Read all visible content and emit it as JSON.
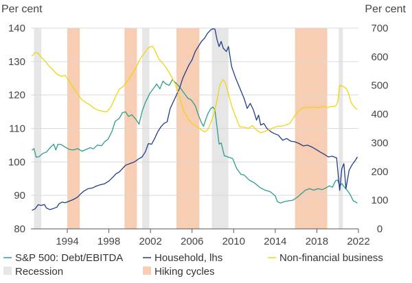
{
  "chart_data": {
    "type": "line",
    "left_unit": "Per cent",
    "right_unit": "Per cent",
    "left_axis": {
      "ticks": [
        80,
        90,
        100,
        110,
        120,
        130,
        140
      ],
      "ylim": [
        80,
        140
      ]
    },
    "right_axis": {
      "ticks": [
        0,
        100,
        200,
        300,
        400,
        500,
        600,
        700
      ],
      "ylim": [
        0,
        700
      ]
    },
    "x_axis": {
      "ticks": [
        1994,
        1998,
        2002,
        2006,
        2010,
        2014,
        2018,
        2022
      ],
      "xlim": [
        1990.5,
        2022
      ],
      "labels": [
        "1994",
        "1998",
        "2002",
        "2006",
        "2010",
        "2014",
        "2018",
        "2022"
      ]
    },
    "grid": true,
    "legend_position": "bottom",
    "shaded_periods": {
      "recession": {
        "name": "Recession",
        "color": "#e6e6e6",
        "periods": [
          [
            1990.8,
            1991.5
          ],
          [
            2001.2,
            2001.9
          ],
          [
            2007.9,
            2009.5
          ],
          [
            2020.1,
            2020.5
          ]
        ]
      },
      "hiking": {
        "name": "Hiking cycles",
        "color": "#f7cdb4",
        "periods": [
          [
            1994.0,
            1995.2
          ],
          [
            1999.5,
            2000.7
          ],
          [
            2004.5,
            2006.7
          ],
          [
            2015.9,
            2019.0
          ]
        ]
      }
    },
    "series": [
      {
        "name": "S&P 500: Debt/EBITDA",
        "axis": "right",
        "color": "#2a9d8f",
        "points": [
          [
            1990.6,
            274
          ],
          [
            1990.8,
            280
          ],
          [
            1991.0,
            250
          ],
          [
            1991.3,
            252
          ],
          [
            1991.6,
            262
          ],
          [
            1992.0,
            268
          ],
          [
            1992.4,
            285
          ],
          [
            1992.7,
            295
          ],
          [
            1992.9,
            275
          ],
          [
            1993.1,
            295
          ],
          [
            1993.4,
            294
          ],
          [
            1993.8,
            285
          ],
          [
            1994.2,
            277
          ],
          [
            1994.6,
            275
          ],
          [
            1995.0,
            280
          ],
          [
            1995.4,
            271
          ],
          [
            1995.7,
            275
          ],
          [
            1996.2,
            283
          ],
          [
            1996.5,
            279
          ],
          [
            1996.9,
            292
          ],
          [
            1997.3,
            290
          ],
          [
            1997.6,
            304
          ],
          [
            1997.9,
            312
          ],
          [
            1998.3,
            340
          ],
          [
            1998.6,
            375
          ],
          [
            1999.0,
            385
          ],
          [
            1999.3,
            405
          ],
          [
            1999.6,
            408
          ],
          [
            1999.9,
            392
          ],
          [
            2000.2,
            398
          ],
          [
            2000.6,
            382
          ],
          [
            2000.9,
            365
          ],
          [
            2001.2,
            410
          ],
          [
            2001.5,
            440
          ],
          [
            2001.9,
            470
          ],
          [
            2002.3,
            490
          ],
          [
            2002.6,
            505
          ],
          [
            2002.9,
            488
          ],
          [
            2003.2,
            515
          ],
          [
            2003.5,
            505
          ],
          [
            2003.8,
            500
          ],
          [
            2004.1,
            520
          ],
          [
            2004.4,
            510
          ],
          [
            2004.8,
            495
          ],
          [
            2005.2,
            475
          ],
          [
            2005.6,
            455
          ],
          [
            2005.9,
            450
          ],
          [
            2006.3,
            430
          ],
          [
            2006.6,
            398
          ],
          [
            2006.9,
            370
          ],
          [
            2007.1,
            358
          ],
          [
            2007.5,
            400
          ],
          [
            2007.8,
            420
          ],
          [
            2008.0,
            425
          ],
          [
            2008.2,
            415
          ],
          [
            2008.6,
            295
          ],
          [
            2008.8,
            300
          ],
          [
            2009.1,
            255
          ],
          [
            2009.5,
            250
          ],
          [
            2009.9,
            245
          ],
          [
            2010.3,
            210
          ],
          [
            2010.7,
            190
          ],
          [
            2011.0,
            188
          ],
          [
            2011.5,
            170
          ],
          [
            2012.0,
            160
          ],
          [
            2012.5,
            145
          ],
          [
            2013.0,
            135
          ],
          [
            2013.5,
            130
          ],
          [
            2014.0,
            115
          ],
          [
            2014.2,
            95
          ],
          [
            2014.5,
            90
          ],
          [
            2014.9,
            95
          ],
          [
            2015.3,
            98
          ],
          [
            2015.7,
            100
          ],
          [
            2016.1,
            110
          ],
          [
            2016.5,
            122
          ],
          [
            2016.9,
            135
          ],
          [
            2017.3,
            140
          ],
          [
            2017.7,
            135
          ],
          [
            2018.1,
            140
          ],
          [
            2018.5,
            137
          ],
          [
            2018.9,
            143
          ],
          [
            2019.2,
            150
          ],
          [
            2019.5,
            145
          ],
          [
            2019.8,
            168
          ],
          [
            2020.0,
            170
          ],
          [
            2020.2,
            150
          ],
          [
            2020.4,
            158
          ],
          [
            2020.6,
            148
          ],
          [
            2020.9,
            135
          ],
          [
            2021.2,
            120
          ],
          [
            2021.5,
            98
          ],
          [
            2021.9,
            90
          ]
        ]
      },
      {
        "name": "Household, lhs",
        "axis": "left",
        "color": "#1f3c88",
        "points": [
          [
            1990.6,
            85.5
          ],
          [
            1990.9,
            86
          ],
          [
            1991.2,
            87.2
          ],
          [
            1991.5,
            87
          ],
          [
            1991.8,
            87.3
          ],
          [
            1992.0,
            86.2
          ],
          [
            1992.3,
            85.8
          ],
          [
            1992.6,
            86
          ],
          [
            1993.0,
            86.5
          ],
          [
            1993.2,
            87.5
          ],
          [
            1993.5,
            88
          ],
          [
            1993.8,
            87.8
          ],
          [
            1994.2,
            88.3
          ],
          [
            1994.6,
            88.8
          ],
          [
            1995.0,
            89.5
          ],
          [
            1995.3,
            90.5
          ],
          [
            1995.6,
            91.3
          ],
          [
            1996.0,
            92
          ],
          [
            1996.4,
            92.2
          ],
          [
            1996.8,
            92.8
          ],
          [
            1997.2,
            93.2
          ],
          [
            1997.6,
            93.5
          ],
          [
            1998.0,
            94.3
          ],
          [
            1998.4,
            95.5
          ],
          [
            1998.7,
            96.5
          ],
          [
            1999.0,
            97
          ],
          [
            1999.3,
            98
          ],
          [
            1999.6,
            99
          ],
          [
            2000.0,
            99.5
          ],
          [
            2000.3,
            99.8
          ],
          [
            2000.6,
            100.3
          ],
          [
            2000.9,
            101
          ],
          [
            2001.2,
            101.5
          ],
          [
            2001.5,
            103
          ],
          [
            2001.8,
            105.5
          ],
          [
            2002.1,
            105.3
          ],
          [
            2002.4,
            107
          ],
          [
            2002.7,
            109
          ],
          [
            2003.0,
            110.5
          ],
          [
            2003.3,
            111.5
          ],
          [
            2003.6,
            112
          ],
          [
            2003.9,
            116
          ],
          [
            2004.2,
            118
          ],
          [
            2004.5,
            120
          ],
          [
            2004.8,
            122
          ],
          [
            2005.1,
            125
          ],
          [
            2005.4,
            127
          ],
          [
            2005.7,
            129
          ],
          [
            2006.0,
            130.5
          ],
          [
            2006.3,
            133
          ],
          [
            2006.6,
            134.5
          ],
          [
            2006.9,
            136
          ],
          [
            2007.2,
            137
          ],
          [
            2007.5,
            138.5
          ],
          [
            2007.8,
            139.5
          ],
          [
            2008.0,
            139.8
          ],
          [
            2008.2,
            139.7
          ],
          [
            2008.4,
            136.5
          ],
          [
            2008.6,
            134.5
          ],
          [
            2008.8,
            136
          ],
          [
            2009.0,
            134
          ],
          [
            2009.3,
            133
          ],
          [
            2009.5,
            134.5
          ],
          [
            2009.8,
            128.5
          ],
          [
            2010.2,
            125
          ],
          [
            2010.6,
            122
          ],
          [
            2011.0,
            119
          ],
          [
            2011.3,
            116
          ],
          [
            2011.6,
            117.5
          ],
          [
            2011.9,
            115.5
          ],
          [
            2012.2,
            112.5
          ],
          [
            2012.4,
            114
          ],
          [
            2012.6,
            111
          ],
          [
            2012.9,
            111.5
          ],
          [
            2013.2,
            110
          ],
          [
            2013.6,
            109
          ],
          [
            2013.9,
            108.5
          ],
          [
            2014.3,
            108
          ],
          [
            2014.7,
            106.5
          ],
          [
            2015.1,
            107
          ],
          [
            2015.5,
            106.2
          ],
          [
            2015.9,
            106
          ],
          [
            2016.3,
            105.5
          ],
          [
            2016.7,
            104.8
          ],
          [
            2017.1,
            105
          ],
          [
            2017.5,
            104.5
          ],
          [
            2017.9,
            103.8
          ],
          [
            2018.3,
            103
          ],
          [
            2018.7,
            102.3
          ],
          [
            2019.1,
            101.5
          ],
          [
            2019.5,
            101.7
          ],
          [
            2019.9,
            101.2
          ],
          [
            2020.2,
            91.5
          ],
          [
            2020.4,
            98
          ],
          [
            2020.6,
            99.5
          ],
          [
            2020.8,
            92
          ],
          [
            2021.1,
            97.5
          ],
          [
            2021.4,
            99.2
          ],
          [
            2021.7,
            100.5
          ],
          [
            2021.9,
            101.5
          ]
        ]
      },
      {
        "name": "Non-financial business",
        "axis": "right",
        "color": "#f2d40c",
        "points": [
          [
            1990.6,
            602
          ],
          [
            1990.9,
            615
          ],
          [
            1991.2,
            612
          ],
          [
            1991.5,
            598
          ],
          [
            1991.8,
            588
          ],
          [
            1992.2,
            570
          ],
          [
            1992.6,
            555
          ],
          [
            1993.0,
            540
          ],
          [
            1993.4,
            532
          ],
          [
            1993.8,
            535
          ],
          [
            1994.2,
            515
          ],
          [
            1994.6,
            490
          ],
          [
            1995.0,
            470
          ],
          [
            1995.4,
            450
          ],
          [
            1995.8,
            440
          ],
          [
            1996.2,
            432
          ],
          [
            1996.6,
            420
          ],
          [
            1997.0,
            413
          ],
          [
            1997.4,
            410
          ],
          [
            1997.8,
            408
          ],
          [
            1998.2,
            425
          ],
          [
            1998.6,
            458
          ],
          [
            1999.0,
            487
          ],
          [
            1999.4,
            497
          ],
          [
            1999.8,
            517
          ],
          [
            2000.2,
            537
          ],
          [
            2000.6,
            562
          ],
          [
            2001.0,
            592
          ],
          [
            2001.4,
            612
          ],
          [
            2001.8,
            632
          ],
          [
            2002.2,
            637
          ],
          [
            2002.5,
            617
          ],
          [
            2002.8,
            592
          ],
          [
            2003.2,
            577
          ],
          [
            2003.6,
            557
          ],
          [
            2004.0,
            532
          ],
          [
            2004.4,
            503
          ],
          [
            2004.8,
            460
          ],
          [
            2005.2,
            410
          ],
          [
            2005.6,
            385
          ],
          [
            2006.0,
            368
          ],
          [
            2006.4,
            358
          ],
          [
            2006.8,
            348
          ],
          [
            2007.2,
            338
          ],
          [
            2007.5,
            345
          ],
          [
            2007.8,
            370
          ],
          [
            2008.1,
            400
          ],
          [
            2008.4,
            450
          ],
          [
            2008.7,
            505
          ],
          [
            2009.0,
            520
          ],
          [
            2009.2,
            510
          ],
          [
            2009.5,
            470
          ],
          [
            2009.8,
            430
          ],
          [
            2010.2,
            390
          ],
          [
            2010.6,
            355
          ],
          [
            2011.0,
            355
          ],
          [
            2011.4,
            350
          ],
          [
            2011.8,
            360
          ],
          [
            2012.2,
            345
          ],
          [
            2012.6,
            335
          ],
          [
            2013.0,
            340
          ],
          [
            2013.4,
            345
          ],
          [
            2013.8,
            352
          ],
          [
            2014.2,
            358
          ],
          [
            2014.6,
            358
          ],
          [
            2015.0,
            362
          ],
          [
            2015.4,
            368
          ],
          [
            2015.8,
            390
          ],
          [
            2016.2,
            410
          ],
          [
            2016.6,
            420
          ],
          [
            2017.0,
            425
          ],
          [
            2017.4,
            423
          ],
          [
            2017.8,
            425
          ],
          [
            2018.2,
            422
          ],
          [
            2018.6,
            428
          ],
          [
            2019.0,
            423
          ],
          [
            2019.4,
            427
          ],
          [
            2019.8,
            428
          ],
          [
            2020.0,
            440
          ],
          [
            2020.2,
            500
          ],
          [
            2020.5,
            497
          ],
          [
            2020.8,
            490
          ],
          [
            2021.0,
            478
          ],
          [
            2021.3,
            440
          ],
          [
            2021.6,
            425
          ],
          [
            2021.9,
            415
          ]
        ]
      }
    ]
  }
}
